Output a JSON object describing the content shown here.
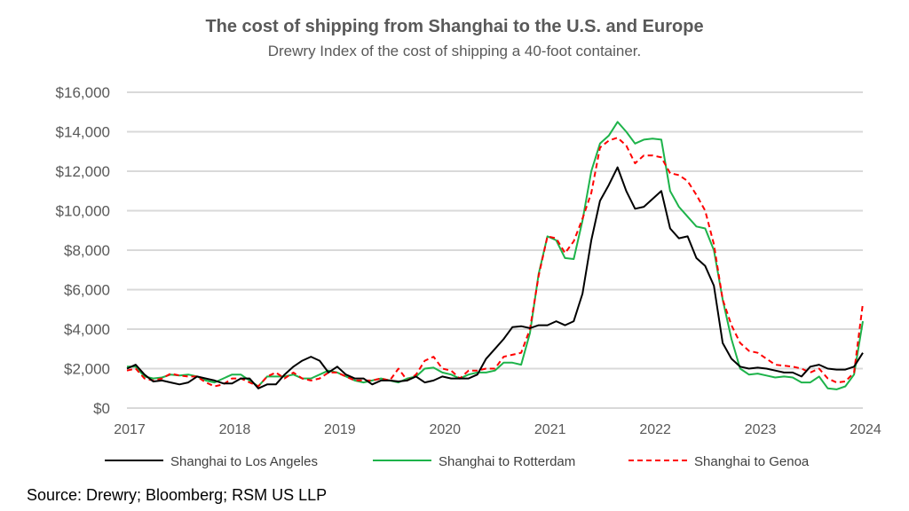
{
  "chart_data": {
    "type": "line",
    "title": "The cost of shipping from Shanghai to the U.S. and Europe",
    "subtitle": "Drewry Index of the cost of shipping a 40-foot container.",
    "source": "Source: Drewry; Bloomberg; RSM US LLP",
    "xlabel": "",
    "ylabel": "",
    "xlim": [
      2017,
      2024
    ],
    "ylim": [
      0,
      16000
    ],
    "x_ticks": [
      "2017",
      "2018",
      "2019",
      "2020",
      "2021",
      "2022",
      "2023",
      "2024"
    ],
    "y_ticks": [
      "$0",
      "$2,000",
      "$4,000",
      "$6,000",
      "$8,000",
      "$10,000",
      "$12,000",
      "$14,000",
      "$16,000"
    ],
    "grid": true,
    "legend_position": "bottom",
    "x_note": "monthly values, starting January 2017",
    "series": [
      {
        "name": "Shanghai to Los Angeles",
        "color": "#000000",
        "dash": "solid",
        "values": [
          2000,
          2200,
          1700,
          1350,
          1400,
          1300,
          1200,
          1300,
          1600,
          1500,
          1400,
          1250,
          1250,
          1500,
          1500,
          1000,
          1200,
          1200,
          1700,
          2100,
          2400,
          2600,
          2400,
          1800,
          2100,
          1700,
          1500,
          1500,
          1200,
          1400,
          1400,
          1350,
          1400,
          1600,
          1300,
          1400,
          1600,
          1500,
          1500,
          1500,
          1700,
          2500,
          3000,
          3500,
          4100,
          4150,
          4050,
          4200,
          4200,
          4400,
          4200,
          4400,
          5800,
          8500,
          10500,
          11300,
          12200,
          11000,
          10100,
          10200,
          10600,
          11000,
          9100,
          8600,
          8700,
          7600,
          7200,
          6200,
          3300,
          2500,
          2100,
          2000,
          2050,
          2000,
          1900,
          1800,
          1800,
          1600,
          2100,
          2200,
          2000,
          1950,
          1950,
          2100,
          2800
        ]
      },
      {
        "name": "Shanghai to Rotterdam",
        "color": "#1db34a",
        "dash": "solid",
        "values": [
          2100,
          2100,
          1600,
          1500,
          1550,
          1700,
          1650,
          1700,
          1600,
          1400,
          1300,
          1500,
          1700,
          1700,
          1400,
          1100,
          1600,
          1600,
          1600,
          1700,
          1500,
          1500,
          1700,
          1900,
          1800,
          1600,
          1400,
          1300,
          1400,
          1500,
          1400,
          1300,
          1500,
          1600,
          2000,
          2050,
          1800,
          1700,
          1500,
          1700,
          1800,
          1800,
          1900,
          2300,
          2300,
          2200,
          3800,
          6800,
          8700,
          8500,
          7600,
          7550,
          9500,
          12000,
          13400,
          13800,
          14500,
          14000,
          13400,
          13600,
          13650,
          13600,
          11000,
          10200,
          9700,
          9200,
          9100,
          8000,
          5500,
          3500,
          2000,
          1700,
          1750,
          1650,
          1550,
          1600,
          1550,
          1300,
          1300,
          1600,
          1000,
          950,
          1100,
          1700,
          4400
        ]
      },
      {
        "name": "Shanghai to Genoa",
        "color": "#ff0000",
        "dash": "dashed",
        "values": [
          1900,
          2000,
          1500,
          1400,
          1500,
          1750,
          1650,
          1600,
          1600,
          1300,
          1100,
          1200,
          1500,
          1500,
          1300,
          1100,
          1600,
          1800,
          1500,
          1800,
          1500,
          1400,
          1500,
          1800,
          1800,
          1600,
          1400,
          1400,
          1400,
          1500,
          1400,
          2000,
          1400,
          1700,
          2400,
          2600,
          2000,
          1900,
          1500,
          1900,
          1900,
          2000,
          2000,
          2600,
          2700,
          2800,
          4000,
          6700,
          8700,
          8600,
          7850,
          8450,
          9600,
          10900,
          13200,
          13550,
          13700,
          13300,
          12400,
          12800,
          12800,
          12700,
          11900,
          11800,
          11500,
          10800,
          10000,
          8300,
          5500,
          4200,
          3300,
          2900,
          2800,
          2500,
          2200,
          2150,
          2100,
          2000,
          1800,
          2000,
          1500,
          1300,
          1350,
          1800,
          5300
        ]
      }
    ]
  }
}
